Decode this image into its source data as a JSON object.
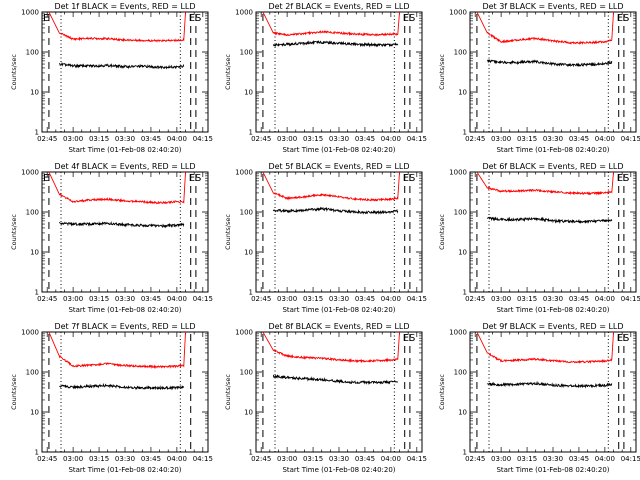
{
  "page": {
    "background": "#ffffff",
    "axis_color": "#000000"
  },
  "chart_data": [
    {
      "type": "line",
      "title": "Det 1f BLACK = Events, RED = LLD",
      "xlabel": "Start Time (01-Feb-08 02:40:20)",
      "ylabel": "Counts/sec",
      "xlim": [
        "02:42",
        "04:18"
      ],
      "ylim": [
        1,
        1000
      ],
      "yscale": "log",
      "grid": false,
      "xticks": [
        "02:45",
        "03:00",
        "03:15",
        "03:30",
        "03:45",
        "04:00",
        "04:15"
      ],
      "yticks": [
        "1",
        "10",
        "100",
        "1000"
      ],
      "annotations": {
        "left": "E",
        "right": "ES"
      },
      "markers": {
        "dashed": [
          "02:46",
          "04:08",
          "04:11"
        ],
        "dotted": [
          "02:53",
          "04:02"
        ]
      },
      "series": [
        {
          "color": "#ff0000",
          "x": [
            "02:46",
            "02:52",
            "03:00",
            "03:10",
            "03:20",
            "03:30",
            "03:40",
            "03:50",
            "04:00",
            "04:04",
            "04:05"
          ],
          "values": [
            1000,
            300,
            210,
            220,
            215,
            200,
            195,
            190,
            195,
            200,
            1000
          ]
        },
        {
          "color": "#000000",
          "x": [
            "02:52",
            "03:00",
            "03:10",
            "03:20",
            "03:30",
            "03:40",
            "03:50",
            "04:00",
            "04:04"
          ],
          "values": [
            50,
            45,
            45,
            46,
            43,
            44,
            42,
            42,
            44
          ]
        }
      ]
    },
    {
      "type": "line",
      "title": "Det 2f BLACK = Events, RED = LLD",
      "xlabel": "Start Time (01-Feb-08 02:40:20)",
      "ylabel": "Counts/sec",
      "xlim": [
        "02:42",
        "04:18"
      ],
      "ylim": [
        1,
        1000
      ],
      "yscale": "log",
      "grid": false,
      "xticks": [
        "02:45",
        "03:00",
        "03:15",
        "03:30",
        "03:45",
        "04:00",
        "04:15"
      ],
      "yticks": [
        "1",
        "10",
        "100",
        "1000"
      ],
      "annotations": {
        "left": "",
        "right": "ES"
      },
      "markers": {
        "dashed": [
          "02:46",
          "04:08",
          "04:11"
        ],
        "dotted": [
          "02:53",
          "04:02"
        ]
      },
      "series": [
        {
          "color": "#ff0000",
          "x": [
            "02:46",
            "02:52",
            "03:00",
            "03:10",
            "03:20",
            "03:30",
            "03:40",
            "03:50",
            "04:00",
            "04:04",
            "04:05"
          ],
          "values": [
            1000,
            300,
            270,
            290,
            320,
            300,
            280,
            270,
            280,
            280,
            1000
          ]
        },
        {
          "color": "#000000",
          "x": [
            "02:52",
            "03:00",
            "03:10",
            "03:20",
            "03:30",
            "03:40",
            "03:50",
            "04:00",
            "04:04"
          ],
          "values": [
            150,
            155,
            165,
            175,
            165,
            155,
            150,
            150,
            155
          ]
        }
      ]
    },
    {
      "type": "line",
      "title": "Det 3f BLACK = Events, RED = LLD",
      "xlabel": "Start Time (01-Feb-08 02:40:20)",
      "ylabel": "Counts/sec",
      "xlim": [
        "02:42",
        "04:18"
      ],
      "ylim": [
        1,
        1000
      ],
      "yscale": "log",
      "grid": false,
      "xticks": [
        "02:45",
        "03:00",
        "03:15",
        "03:30",
        "03:45",
        "04:00",
        "04:15"
      ],
      "yticks": [
        "1",
        "10",
        "100",
        "1000"
      ],
      "annotations": {
        "left": "",
        "right": "ES"
      },
      "markers": {
        "dashed": [
          "02:46",
          "04:08",
          "04:11"
        ],
        "dotted": [
          "02:53",
          "04:02"
        ]
      },
      "series": [
        {
          "color": "#ff0000",
          "x": [
            "02:46",
            "02:52",
            "03:00",
            "03:10",
            "03:20",
            "03:30",
            "03:40",
            "03:50",
            "04:00",
            "04:04",
            "04:05"
          ],
          "values": [
            1000,
            300,
            180,
            200,
            220,
            190,
            170,
            170,
            180,
            200,
            1000
          ]
        },
        {
          "color": "#000000",
          "x": [
            "02:52",
            "03:00",
            "03:10",
            "03:20",
            "03:30",
            "03:40",
            "03:50",
            "04:00",
            "04:04"
          ],
          "values": [
            60,
            55,
            55,
            58,
            50,
            48,
            48,
            50,
            55
          ]
        }
      ]
    },
    {
      "type": "line",
      "title": "Det 4f BLACK = Events, RED = LLD",
      "xlabel": "Start Time (01-Feb-08 02:40:20)",
      "ylabel": "Counts/sec",
      "xlim": [
        "02:42",
        "04:18"
      ],
      "ylim": [
        1,
        1000
      ],
      "yscale": "log",
      "grid": false,
      "xticks": [
        "02:45",
        "03:00",
        "03:15",
        "03:30",
        "03:45",
        "04:00",
        "04:15"
      ],
      "yticks": [
        "1",
        "10",
        "100",
        "1000"
      ],
      "annotations": {
        "left": "E",
        "right": "ES"
      },
      "markers": {
        "dashed": [
          "02:46",
          "04:08",
          "04:11"
        ],
        "dotted": [
          "02:53",
          "04:02"
        ]
      },
      "series": [
        {
          "color": "#ff0000",
          "x": [
            "02:46",
            "02:52",
            "03:00",
            "03:10",
            "03:20",
            "03:30",
            "03:40",
            "03:50",
            "04:00",
            "04:04",
            "04:05"
          ],
          "values": [
            1000,
            280,
            180,
            200,
            210,
            190,
            180,
            170,
            180,
            180,
            1000
          ]
        },
        {
          "color": "#000000",
          "x": [
            "02:52",
            "03:00",
            "03:10",
            "03:20",
            "03:30",
            "03:40",
            "03:50",
            "04:00",
            "04:04"
          ],
          "values": [
            52,
            50,
            50,
            52,
            48,
            46,
            45,
            46,
            48
          ]
        }
      ]
    },
    {
      "type": "line",
      "title": "Det 5f BLACK = Events, RED = LLD",
      "xlabel": "Start Time (01-Feb-08 02:40:20)",
      "ylabel": "Counts/sec",
      "xlim": [
        "02:42",
        "04:18"
      ],
      "ylim": [
        1,
        1000
      ],
      "yscale": "log",
      "grid": false,
      "xticks": [
        "02:45",
        "03:00",
        "03:15",
        "03:30",
        "03:45",
        "04:00",
        "04:15"
      ],
      "yticks": [
        "1",
        "10",
        "100",
        "1000"
      ],
      "annotations": {
        "left": "",
        "right": "ES"
      },
      "markers": {
        "dashed": [
          "02:46",
          "04:08",
          "04:11"
        ],
        "dotted": [
          "02:53",
          "04:02"
        ]
      },
      "series": [
        {
          "color": "#ff0000",
          "x": [
            "02:46",
            "02:52",
            "03:00",
            "03:10",
            "03:20",
            "03:30",
            "03:40",
            "03:50",
            "04:00",
            "04:04",
            "04:05"
          ],
          "values": [
            1000,
            300,
            220,
            240,
            270,
            240,
            210,
            200,
            210,
            220,
            1000
          ]
        },
        {
          "color": "#000000",
          "x": [
            "02:52",
            "03:00",
            "03:10",
            "03:20",
            "03:30",
            "03:40",
            "03:50",
            "04:00",
            "04:04"
          ],
          "values": [
            110,
            105,
            110,
            120,
            108,
            100,
            98,
            100,
            105
          ]
        }
      ]
    },
    {
      "type": "line",
      "title": "Det 6f BLACK = Events, RED = LLD",
      "xlabel": "Start Time (01-Feb-08 02:40:20)",
      "ylabel": "Counts/sec",
      "xlim": [
        "02:42",
        "04:18"
      ],
      "ylim": [
        1,
        1000
      ],
      "yscale": "log",
      "grid": false,
      "xticks": [
        "02:45",
        "03:00",
        "03:15",
        "03:30",
        "03:45",
        "04:00",
        "04:15"
      ],
      "yticks": [
        "1",
        "10",
        "100",
        "1000"
      ],
      "annotations": {
        "left": "",
        "right": "ES"
      },
      "markers": {
        "dashed": [
          "02:46",
          "04:08",
          "04:11"
        ],
        "dotted": [
          "02:53",
          "04:02"
        ]
      },
      "series": [
        {
          "color": "#ff0000",
          "x": [
            "02:46",
            "02:52",
            "03:00",
            "03:10",
            "03:20",
            "03:30",
            "03:40",
            "03:50",
            "04:00",
            "04:04",
            "04:05"
          ],
          "values": [
            1000,
            400,
            330,
            340,
            350,
            320,
            300,
            290,
            300,
            310,
            1000
          ]
        },
        {
          "color": "#000000",
          "x": [
            "02:52",
            "03:00",
            "03:10",
            "03:20",
            "03:30",
            "03:40",
            "03:50",
            "04:00",
            "04:04"
          ],
          "values": [
            70,
            65,
            65,
            68,
            60,
            58,
            58,
            60,
            62
          ]
        }
      ]
    },
    {
      "type": "line",
      "title": "Det 7f BLACK = Events, RED = LLD",
      "xlabel": "Start Time (01-Feb-08 02:40:20)",
      "ylabel": "Counts/sec",
      "xlim": [
        "02:42",
        "04:18"
      ],
      "ylim": [
        1,
        1000
      ],
      "yscale": "log",
      "grid": false,
      "xticks": [
        "02:45",
        "03:00",
        "03:15",
        "03:30",
        "03:45",
        "04:00",
        "04:15"
      ],
      "yticks": [
        "1",
        "10",
        "100",
        "1000"
      ],
      "annotations": {
        "left": "",
        "right": ""
      },
      "markers": {
        "dashed": [
          "02:46",
          "04:08"
        ],
        "dotted": [
          "02:53",
          "04:02"
        ]
      },
      "series": [
        {
          "color": "#ff0000",
          "x": [
            "02:46",
            "02:52",
            "03:00",
            "03:10",
            "03:20",
            "03:30",
            "03:40",
            "03:50",
            "04:00",
            "04:04",
            "04:05"
          ],
          "values": [
            1000,
            250,
            140,
            150,
            160,
            145,
            140,
            135,
            140,
            145,
            1000
          ]
        },
        {
          "color": "#000000",
          "x": [
            "02:52",
            "03:00",
            "03:10",
            "03:20",
            "03:30",
            "03:40",
            "03:50",
            "04:00",
            "04:04"
          ],
          "values": [
            45,
            42,
            44,
            46,
            42,
            40,
            40,
            41,
            43
          ]
        }
      ]
    },
    {
      "type": "line",
      "title": "Det 8f BLACK = Events, RED = LLD",
      "xlabel": "Start Time (01-Feb-08 02:40:20)",
      "ylabel": "Counts/sec",
      "xlim": [
        "02:42",
        "04:18"
      ],
      "ylim": [
        1,
        1000
      ],
      "yscale": "log",
      "grid": false,
      "xticks": [
        "02:45",
        "03:00",
        "03:15",
        "03:30",
        "03:45",
        "04:00",
        "04:15"
      ],
      "yticks": [
        "1",
        "10",
        "100",
        "1000"
      ],
      "annotations": {
        "left": "",
        "right": "ES"
      },
      "markers": {
        "dashed": [
          "02:46",
          "04:08",
          "04:11"
        ],
        "dotted": [
          "02:53",
          "04:02"
        ]
      },
      "series": [
        {
          "color": "#ff0000",
          "x": [
            "02:46",
            "02:52",
            "03:00",
            "03:10",
            "03:20",
            "03:30",
            "03:40",
            "03:50",
            "04:00",
            "04:04",
            "04:05"
          ],
          "values": [
            1000,
            350,
            250,
            230,
            220,
            200,
            190,
            190,
            200,
            210,
            1000
          ]
        },
        {
          "color": "#000000",
          "x": [
            "02:52",
            "03:00",
            "03:10",
            "03:20",
            "03:30",
            "03:40",
            "03:50",
            "04:00",
            "04:04"
          ],
          "values": [
            80,
            72,
            68,
            65,
            58,
            55,
            55,
            56,
            60
          ]
        }
      ]
    },
    {
      "type": "line",
      "title": "Det 9f BLACK = Events, RED = LLD",
      "xlabel": "Start Time (01-Feb-08 02:40:20)",
      "ylabel": "Counts/sec",
      "xlim": [
        "02:42",
        "04:18"
      ],
      "ylim": [
        1,
        1000
      ],
      "yscale": "log",
      "grid": false,
      "xticks": [
        "02:45",
        "03:00",
        "03:15",
        "03:30",
        "03:45",
        "04:00",
        "04:15"
      ],
      "yticks": [
        "1",
        "10",
        "100",
        "1000"
      ],
      "annotations": {
        "left": "",
        "right": "ES"
      },
      "markers": {
        "dashed": [
          "02:46",
          "04:08",
          "04:11"
        ],
        "dotted": [
          "02:53",
          "04:02"
        ]
      },
      "series": [
        {
          "color": "#ff0000",
          "x": [
            "02:46",
            "02:52",
            "03:00",
            "03:10",
            "03:20",
            "03:30",
            "03:40",
            "03:50",
            "04:00",
            "04:04",
            "04:05"
          ],
          "values": [
            1000,
            300,
            190,
            200,
            210,
            190,
            180,
            180,
            190,
            200,
            1000
          ]
        },
        {
          "color": "#000000",
          "x": [
            "02:52",
            "03:00",
            "03:10",
            "03:20",
            "03:30",
            "03:40",
            "03:50",
            "04:00",
            "04:04"
          ],
          "values": [
            50,
            48,
            50,
            52,
            47,
            45,
            45,
            46,
            50
          ]
        }
      ]
    }
  ]
}
